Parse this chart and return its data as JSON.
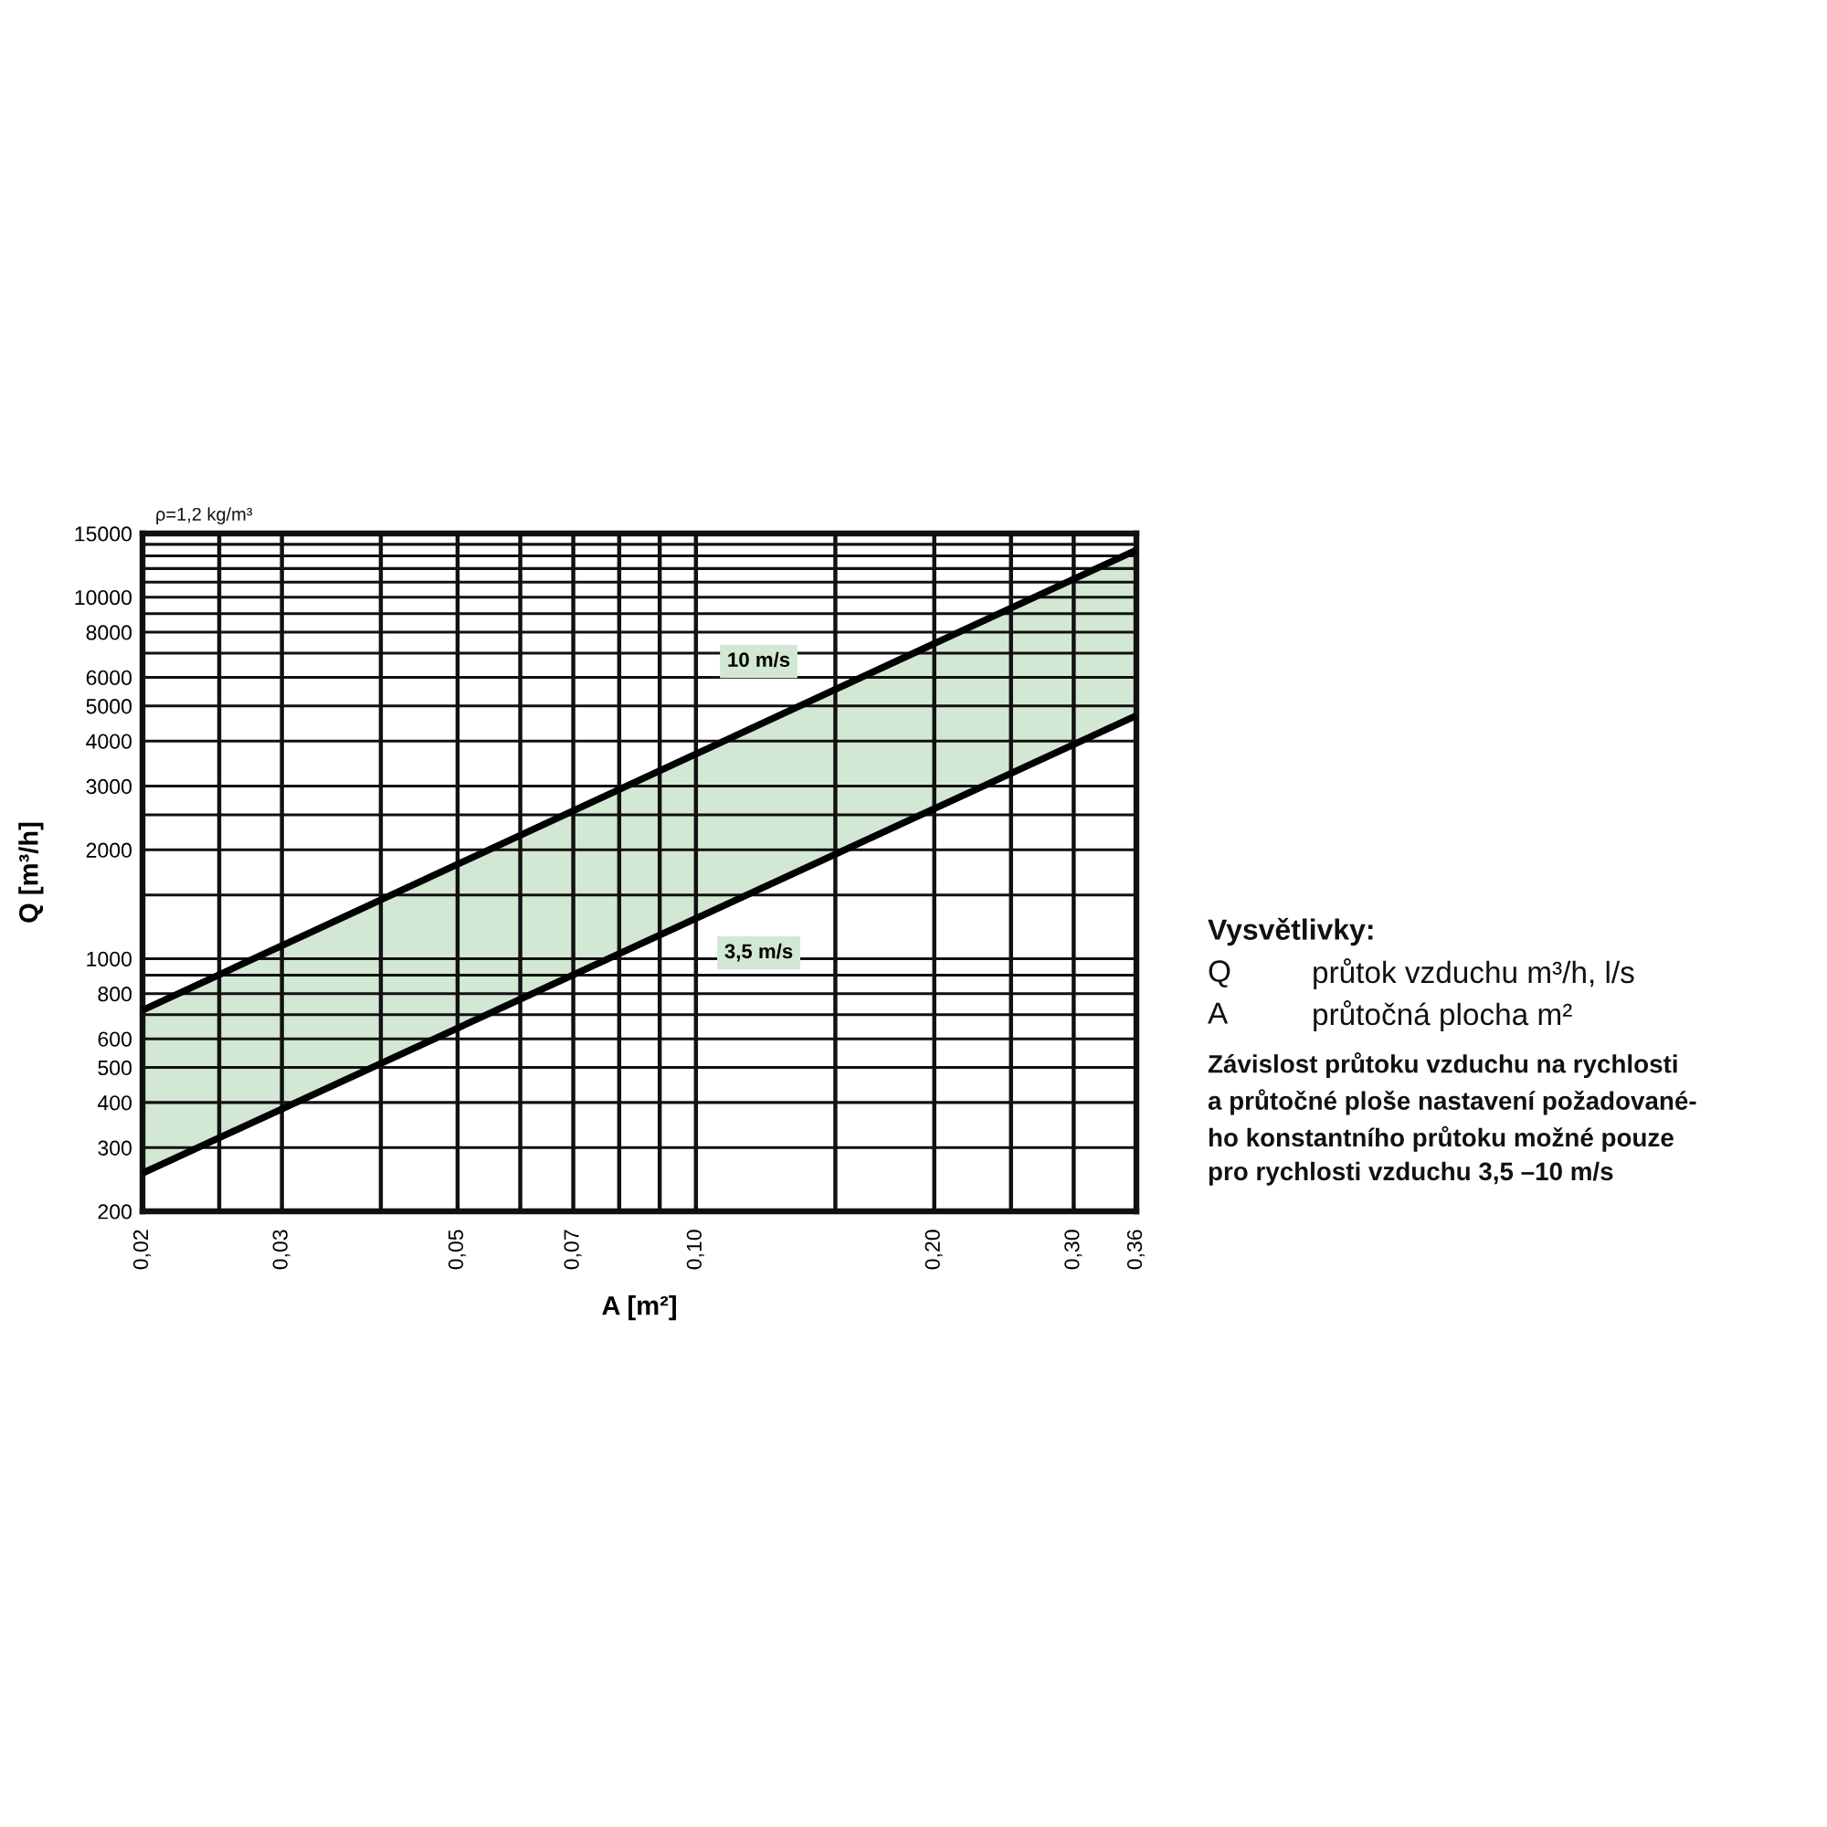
{
  "chart_data": {
    "type": "line",
    "xlabel": "A [m²]",
    "ylabel": "Q [m³/h]",
    "annotations": [
      "ρ=1,2 kg/m³",
      "Vysvětlivky:",
      "Q",
      "průtok vzduchu m³/h, l/s",
      "A",
      "průtočná plocha m²",
      "Závislost průtoku vzduchu na rychlosti\na průtočné ploše nastavení požadované-\nho konstantního průtoku možné pouze\npro rychlosti vzduchu 3,5 –10 m/s"
    ],
    "log": "xy",
    "xlim": [
      0.02,
      0.36
    ],
    "ylim": [
      200,
      15000
    ],
    "xticks": [
      {
        "value": 0.02,
        "label": "0,02"
      },
      {
        "value": 0.025,
        "label": null
      },
      {
        "value": 0.03,
        "label": "0,03"
      },
      {
        "value": 0.04,
        "label": null
      },
      {
        "value": 0.05,
        "label": "0,05"
      },
      {
        "value": 0.06,
        "label": null
      },
      {
        "value": 0.07,
        "label": "0,07"
      },
      {
        "value": 0.08,
        "label": null
      },
      {
        "value": 0.09,
        "label": null
      },
      {
        "value": 0.1,
        "label": "0,10"
      },
      {
        "value": 0.15,
        "label": null
      },
      {
        "value": 0.2,
        "label": "0,20"
      },
      {
        "value": 0.25,
        "label": null
      },
      {
        "value": 0.3,
        "label": "0,30"
      },
      {
        "value": 0.36,
        "label": "0,36"
      }
    ],
    "yticks": [
      200,
      300,
      400,
      500,
      600,
      {
        "value": 700,
        "label": null
      },
      800,
      {
        "value": 900,
        "label": null
      },
      1000,
      {
        "value": 1500,
        "label": null
      },
      2000,
      {
        "value": 2500,
        "label": null
      },
      3000,
      4000,
      5000,
      6000,
      {
        "value": 7000,
        "label": null
      },
      8000,
      {
        "value": 9000,
        "label": null
      },
      10000,
      {
        "value": 11000,
        "label": null
      },
      {
        "value": 12000,
        "label": null
      },
      {
        "value": 13000,
        "label": null
      },
      {
        "value": 14000,
        "label": null
      },
      15000
    ],
    "grid": true,
    "x": [
      0.02,
      0.36
    ],
    "series": [
      {
        "name": "10 m/s",
        "color": "#000000",
        "values": [
          720,
          13500
        ],
        "lower": [
          255,
          4700
        ],
        "upper": [
          720,
          13500
        ]
      },
      {
        "name": "3,5 m/s",
        "color": "#000000",
        "values": [
          255,
          4700
        ]
      }
    ]
  }
}
